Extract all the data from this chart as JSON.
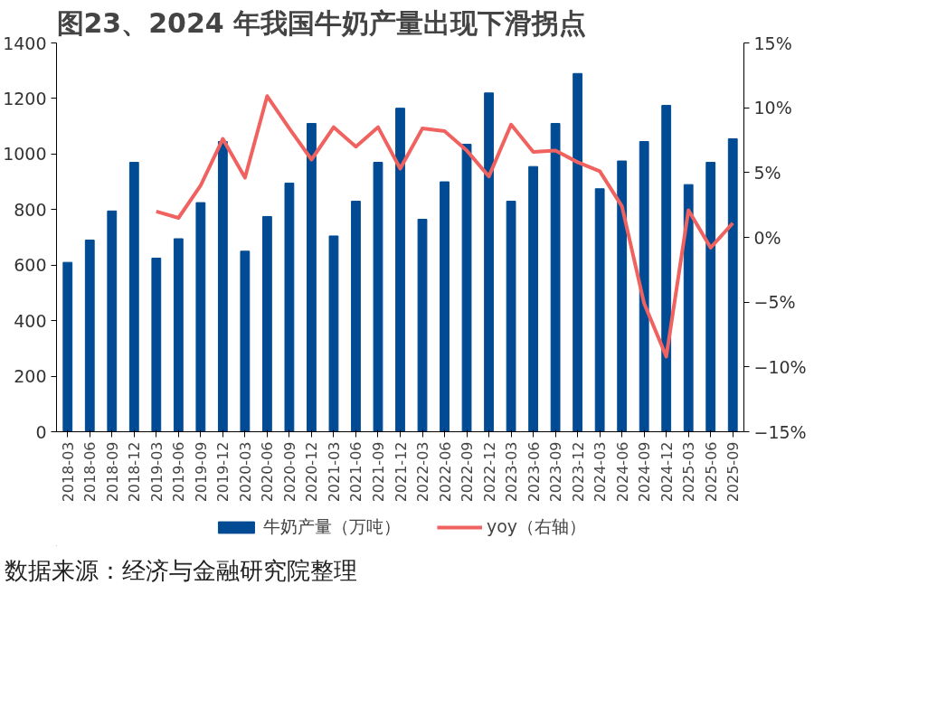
{
  "chart_data": {
    "type": "bar",
    "title": "图23、2024 年我国牛奶产量出现下滑拐点",
    "categories": [
      "2018-03",
      "2018-06",
      "2018-09",
      "2018-12",
      "2019-03",
      "2019-06",
      "2019-09",
      "2019-12",
      "2020-03",
      "2020-06",
      "2020-09",
      "2020-12",
      "2021-03",
      "2021-06",
      "2021-09",
      "2021-12",
      "2022-03",
      "2022-06",
      "2022-09",
      "2022-12",
      "2023-03",
      "2023-06",
      "2023-09",
      "2023-12",
      "2024-03",
      "2024-06",
      "2024-09",
      "2024-12",
      "2025-03",
      "2025-06",
      "2025-09"
    ],
    "series": [
      {
        "name": "牛奶产量（万吨）",
        "color": "#004b93",
        "values": [
          610,
          690,
          795,
          970,
          625,
          695,
          825,
          1045,
          650,
          775,
          895,
          1110,
          705,
          830,
          970,
          1165,
          765,
          900,
          1035,
          1220,
          830,
          955,
          1110,
          1290,
          875,
          975,
          1045,
          1175,
          890,
          970,
          1055
        ]
      },
      {
        "name": "yoy（右轴）",
        "type": "line",
        "axis": "y2",
        "color": "#f0625f",
        "values": [
          null,
          null,
          null,
          null,
          2.0,
          1.5,
          4.0,
          7.6,
          4.6,
          10.9,
          8.4,
          6.0,
          8.5,
          7.0,
          8.5,
          5.3,
          8.4,
          8.2,
          6.7,
          4.7,
          8.7,
          6.6,
          6.7,
          5.8,
          5.1,
          2.4,
          -5.1,
          -9.2,
          2.1,
          -0.8,
          1.1
        ]
      }
    ],
    "ylim": [
      0,
      1400
    ],
    "yticks": [
      0,
      200,
      400,
      600,
      800,
      1000,
      1200,
      1400
    ],
    "y2lim": [
      -15,
      15
    ],
    "y2ticks": [
      {
        "value": -15,
        "label": "−15%"
      },
      {
        "value": -10,
        "label": "−10%"
      },
      {
        "value": -5,
        "label": "−5%"
      },
      {
        "value": 0,
        "label": "0%"
      },
      {
        "value": 5,
        "label": "5%"
      },
      {
        "value": 10,
        "label": "10%"
      },
      {
        "value": 15,
        "label": "15%"
      }
    ],
    "grid": false,
    "legend": "bottom",
    "line_style": "solid",
    "marker": "none",
    "annotations": [
      "数据来源：经济与金融研究院整理"
    ]
  }
}
